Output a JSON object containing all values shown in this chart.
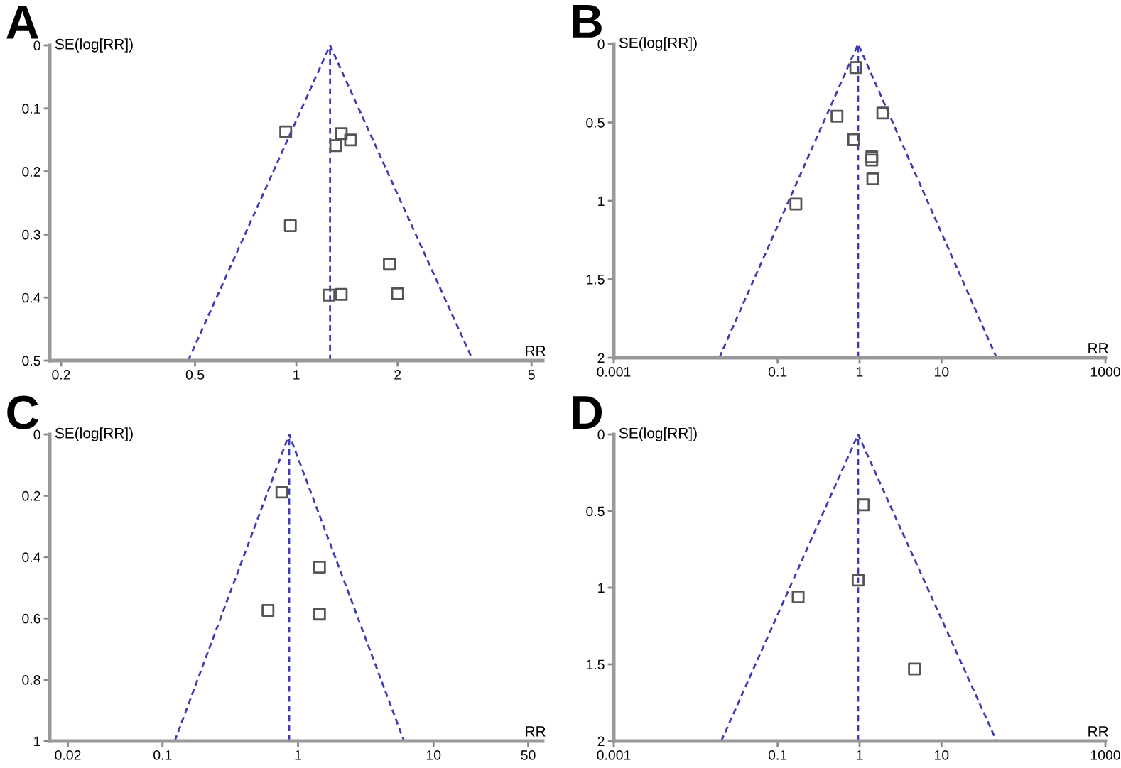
{
  "chart_data": [
    {
      "type": "scatter",
      "title": "A",
      "xlabel": "RR",
      "ylabel": "SE(log[RR])",
      "log": "x",
      "xlim": [
        0.185,
        5.4
      ],
      "ylim": [
        0.5,
        0
      ],
      "xticks": [
        0.2,
        0.5,
        1,
        2,
        5
      ],
      "yticks": [
        0,
        0.1,
        0.2,
        0.3,
        0.4,
        0.5
      ],
      "grid": false,
      "marker": "square",
      "ref_lines": [
        {
          "axis": "x",
          "value": 1.26,
          "color": "#3c3cb4",
          "line_style": "dashed"
        }
      ],
      "series": [
        {
          "color": "#555555",
          "x": [
            0.93,
            1.36,
            1.45,
            1.31,
            0.96,
            1.89,
            1.25,
            1.36,
            2.0
          ],
          "values": [
            0.137,
            0.14,
            0.15,
            0.159,
            0.286,
            0.347,
            0.396,
            0.395,
            0.394
          ]
        },
        {
          "type": "line",
          "color": "#3c3cb4",
          "line_style": "dashed",
          "marker": "none",
          "x": [
            0.477,
            1.26,
            3.35
          ],
          "values": [
            0.5,
            0,
            0.5
          ]
        }
      ]
    },
    {
      "type": "scatter",
      "title": "B",
      "xlabel": "RR",
      "ylabel": "SE(log[RR])",
      "log": "x",
      "xlim": [
        0.001,
        1000
      ],
      "ylim": [
        2,
        0
      ],
      "xticks": [
        0.001,
        0.1,
        1,
        10,
        1000
      ],
      "yticks": [
        0,
        0.5,
        1,
        1.5,
        2
      ],
      "grid": false,
      "marker": "square",
      "ref_lines": [
        {
          "axis": "x",
          "value": 0.96,
          "color": "#3c3cb4",
          "line_style": "dashed"
        }
      ],
      "series": [
        {
          "color": "#555555",
          "x": [
            0.9,
            0.53,
            1.92,
            0.85,
            1.41,
            1.41,
            1.45,
            0.167
          ],
          "values": [
            0.15,
            0.46,
            0.44,
            0.61,
            0.72,
            0.74,
            0.86,
            1.02
          ]
        },
        {
          "type": "line",
          "color": "#3c3cb4",
          "line_style": "dashed",
          "marker": "none",
          "x": [
            0.0194,
            0.96,
            47
          ],
          "values": [
            2,
            0,
            2
          ]
        }
      ]
    },
    {
      "type": "scatter",
      "title": "C",
      "xlabel": "RR",
      "ylabel": "SE(log[RR])",
      "log": "x",
      "xlim": [
        0.0147,
        64
      ],
      "ylim": [
        1,
        0
      ],
      "xticks": [
        0.02,
        0.1,
        1,
        10,
        50
      ],
      "yticks": [
        0,
        0.2,
        0.4,
        0.6,
        0.8,
        1
      ],
      "grid": false,
      "marker": "square",
      "ref_lines": [
        {
          "axis": "x",
          "value": 0.86,
          "color": "#3c3cb4",
          "line_style": "dashed"
        }
      ],
      "series": [
        {
          "color": "#555555",
          "x": [
            0.76,
            1.44,
            0.6,
            1.44
          ],
          "values": [
            0.188,
            0.433,
            0.574,
            0.586
          ]
        },
        {
          "type": "line",
          "color": "#3c3cb4",
          "line_style": "dashed",
          "marker": "none",
          "x": [
            0.123,
            0.86,
            6.06
          ],
          "values": [
            1,
            0,
            1
          ]
        }
      ]
    },
    {
      "type": "scatter",
      "title": "D",
      "xlabel": "RR",
      "ylabel": "SE(log[RR])",
      "log": "x",
      "xlim": [
        0.001,
        1000
      ],
      "ylim": [
        2,
        0
      ],
      "xticks": [
        0.001,
        0.1,
        1,
        10,
        1000
      ],
      "yticks": [
        0,
        0.5,
        1,
        1.5,
        2
      ],
      "grid": false,
      "marker": "square",
      "ref_lines": [
        {
          "axis": "x",
          "value": 0.96,
          "color": "#3c3cb4",
          "line_style": "dashed"
        }
      ],
      "series": [
        {
          "color": "#555555",
          "x": [
            1.11,
            0.96,
            0.178,
            4.67
          ],
          "values": [
            0.46,
            0.95,
            1.06,
            1.53
          ]
        },
        {
          "type": "line",
          "color": "#3c3cb4",
          "line_style": "dashed",
          "marker": "none",
          "x": [
            0.0205,
            0.96,
            47
          ],
          "values": [
            2,
            0,
            2
          ]
        }
      ]
    }
  ]
}
